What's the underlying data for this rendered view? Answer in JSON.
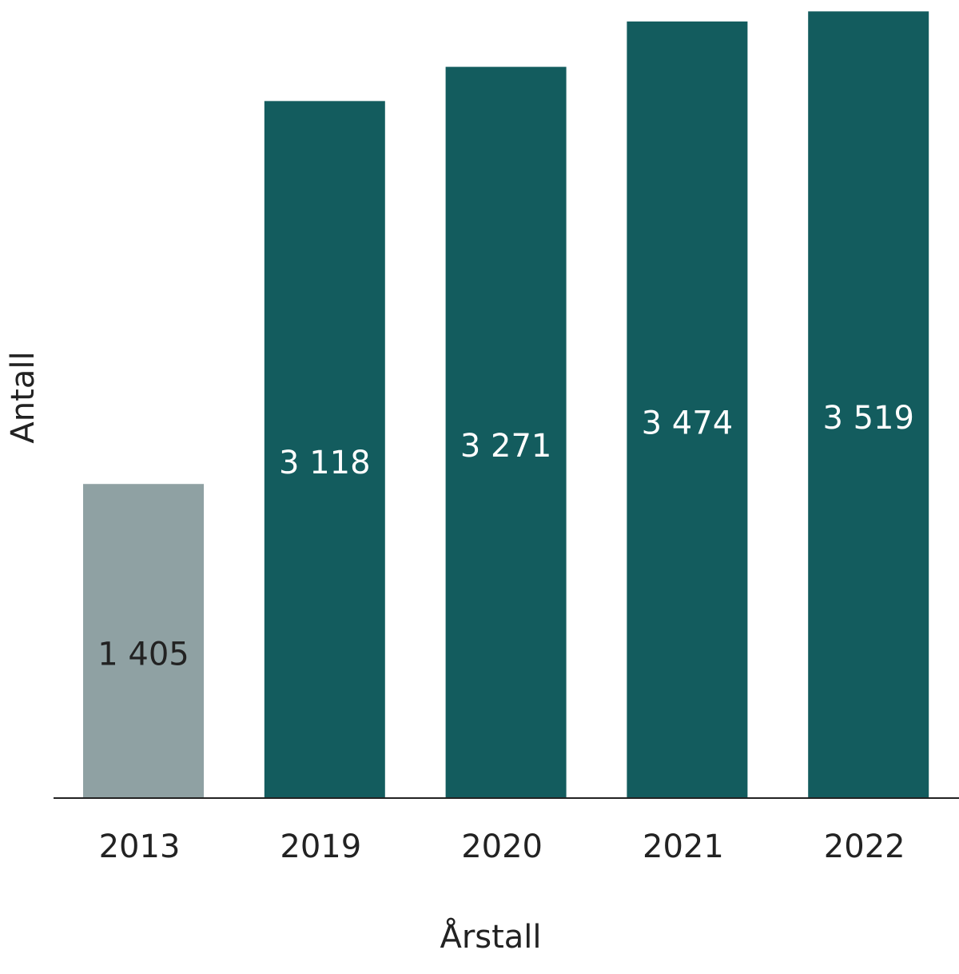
{
  "chart_data": {
    "type": "bar",
    "title": "",
    "xlabel": "Årstall",
    "ylabel": "Antall",
    "categories": [
      "2013",
      "2019",
      "2020",
      "2021",
      "2022"
    ],
    "values": [
      1405,
      3118,
      3271,
      3474,
      3519
    ],
    "value_labels": [
      "1 405",
      "3 118",
      "3 271",
      "3 474",
      "3 519"
    ],
    "ylim": [
      0,
      3570
    ],
    "grid": false,
    "legend": "none",
    "colors": {
      "highlight": "#135c5e",
      "baseline_year": "#8fa1a3",
      "label_on_dark": "#ffffff",
      "label_on_light": "#222222",
      "axis": "#222222"
    },
    "bar_color_keys": [
      "baseline_year",
      "highlight",
      "highlight",
      "highlight",
      "highlight"
    ]
  }
}
